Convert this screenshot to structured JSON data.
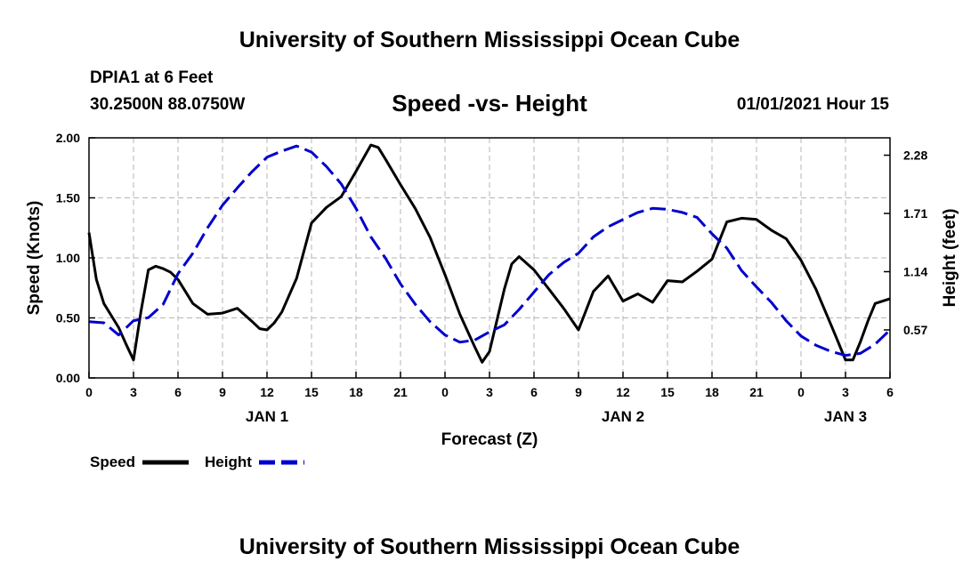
{
  "header": {
    "title_top": "University of Southern Mississippi Ocean Cube",
    "station": "DPIA1 at 6 Feet",
    "coords": "30.2500N 88.0750W",
    "subtitle": "Speed -vs- Height",
    "datetime": "01/01/2021 Hour 15",
    "title_bottom": "University of Southern Mississippi Ocean Cube"
  },
  "colors": {
    "speed": "#000000",
    "height": "#0000cc",
    "grid": "#b4b4b4"
  },
  "chart_data": {
    "type": "line",
    "title": "Speed -vs- Height",
    "xlabel": "Forecast (Z)",
    "ylabel": "Speed (Knots)",
    "y2label": "Height (feet)",
    "xlim": [
      0,
      54
    ],
    "ylim": [
      0,
      2.0
    ],
    "y2lim": [
      0.1,
      2.45
    ],
    "grid": true,
    "x_ticks": [
      0,
      3,
      6,
      9,
      12,
      15,
      18,
      21,
      24,
      27,
      30,
      33,
      36,
      39,
      42,
      45,
      48,
      51,
      54
    ],
    "x_tick_labels": [
      "0",
      "3",
      "6",
      "9",
      "12",
      "15",
      "18",
      "21",
      "0",
      "3",
      "6",
      "9",
      "12",
      "15",
      "18",
      "21",
      "0",
      "3",
      "6"
    ],
    "y_ticks": [
      0,
      0.5,
      1.0,
      1.5,
      2.0
    ],
    "y_tick_labels": [
      "0.00",
      "0.50",
      "1.00",
      "1.50",
      "2.00"
    ],
    "y2_ticks": [
      0.57,
      1.14,
      1.71,
      2.28
    ],
    "y2_tick_labels": [
      "0.57",
      "1.14",
      "1.71",
      "2.28"
    ],
    "date_labels": [
      {
        "x": 12,
        "label": "JAN 1"
      },
      {
        "x": 36,
        "label": "JAN 2"
      },
      {
        "x": 51,
        "label": "JAN 3"
      }
    ],
    "series": [
      {
        "name": "Speed",
        "axis": "left",
        "style": "solid",
        "x": [
          0,
          0.5,
          1,
          2,
          2.5,
          3,
          3.5,
          4,
          4.5,
          5,
          5.5,
          6,
          7,
          8,
          9,
          10,
          11,
          11.5,
          12,
          12.5,
          13,
          14,
          15,
          16,
          17,
          18,
          19,
          19.5,
          20,
          21,
          22,
          23,
          24,
          25,
          26,
          26.5,
          27,
          28,
          28.5,
          29,
          30,
          31,
          32,
          33,
          34,
          35,
          36,
          37,
          38,
          39,
          40,
          41,
          42,
          43,
          44,
          45,
          46,
          47,
          48,
          49,
          50,
          50.5,
          51,
          51.5,
          52,
          52.5,
          53,
          54
        ],
        "values": [
          1.21,
          0.82,
          0.62,
          0.42,
          0.28,
          0.15,
          0.55,
          0.9,
          0.93,
          0.91,
          0.88,
          0.82,
          0.62,
          0.53,
          0.54,
          0.58,
          0.47,
          0.41,
          0.4,
          0.46,
          0.55,
          0.83,
          1.29,
          1.42,
          1.51,
          1.72,
          1.94,
          1.92,
          1.82,
          1.61,
          1.41,
          1.17,
          0.86,
          0.53,
          0.26,
          0.13,
          0.22,
          0.74,
          0.95,
          1.01,
          0.9,
          0.74,
          0.58,
          0.4,
          0.72,
          0.85,
          0.64,
          0.7,
          0.63,
          0.81,
          0.8,
          0.89,
          0.99,
          1.3,
          1.33,
          1.32,
          1.23,
          1.16,
          0.98,
          0.74,
          0.45,
          0.3,
          0.15,
          0.15,
          0.3,
          0.47,
          0.62,
          0.66
        ]
      },
      {
        "name": "Height",
        "axis": "right",
        "style": "dashed",
        "x": [
          0,
          1,
          2,
          3,
          4,
          5,
          6,
          7,
          8,
          9,
          10,
          11,
          12,
          13,
          14,
          15,
          16,
          17,
          18,
          19,
          20,
          21,
          22,
          23,
          24,
          25,
          26,
          27,
          28,
          29,
          30,
          31,
          32,
          33,
          34,
          35,
          36,
          37,
          38,
          39,
          40,
          41,
          42,
          43,
          44,
          45,
          46,
          47,
          48,
          49,
          50,
          51,
          52,
          53,
          54
        ],
        "values": [
          0.65,
          0.64,
          0.52,
          0.66,
          0.69,
          0.82,
          1.12,
          1.32,
          1.57,
          1.79,
          1.96,
          2.12,
          2.26,
          2.32,
          2.37,
          2.31,
          2.17,
          2.0,
          1.76,
          1.48,
          1.27,
          1.02,
          0.82,
          0.65,
          0.52,
          0.45,
          0.47,
          0.55,
          0.62,
          0.77,
          0.94,
          1.11,
          1.23,
          1.32,
          1.48,
          1.58,
          1.65,
          1.72,
          1.76,
          1.75,
          1.72,
          1.67,
          1.51,
          1.37,
          1.15,
          0.99,
          0.84,
          0.66,
          0.51,
          0.42,
          0.36,
          0.32,
          0.34,
          0.43,
          0.57
        ]
      }
    ]
  },
  "legend": {
    "speed_label": "Speed",
    "height_label": "Height"
  }
}
